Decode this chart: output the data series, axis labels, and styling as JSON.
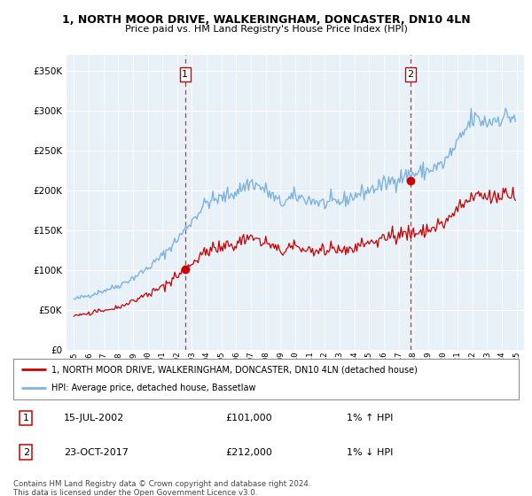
{
  "title": "1, NORTH MOOR DRIVE, WALKERINGHAM, DONCASTER, DN10 4LN",
  "subtitle": "Price paid vs. HM Land Registry's House Price Index (HPI)",
  "legend_line1": "1, NORTH MOOR DRIVE, WALKERINGHAM, DONCASTER, DN10 4LN (detached house)",
  "legend_line2": "HPI: Average price, detached house, Bassetlaw",
  "footer": "Contains HM Land Registry data © Crown copyright and database right 2024.\nThis data is licensed under the Open Government Licence v3.0.",
  "sale1_label": "1",
  "sale1_date": "15-JUL-2002",
  "sale1_price": "£101,000",
  "sale1_hpi": "1% ↑ HPI",
  "sale2_label": "2",
  "sale2_date": "23-OCT-2017",
  "sale2_price": "£212,000",
  "sale2_hpi": "1% ↓ HPI",
  "sale1_x": 2002.54,
  "sale1_y": 101000,
  "sale2_x": 2017.81,
  "sale2_y": 212000,
  "hpi_color": "#7fb3e0",
  "price_color": "#cc0000",
  "dashed_color": "#cc0000",
  "background_color": "#e8f0f8",
  "ylim": [
    0,
    370000
  ],
  "xlim": [
    1994.5,
    2025.5
  ],
  "yticks": [
    0,
    50000,
    100000,
    150000,
    200000,
    250000,
    300000,
    350000
  ],
  "xticks": [
    1995,
    1996,
    1997,
    1998,
    1999,
    2000,
    2001,
    2002,
    2003,
    2004,
    2005,
    2006,
    2007,
    2008,
    2009,
    2010,
    2011,
    2012,
    2013,
    2014,
    2015,
    2016,
    2017,
    2018,
    2019,
    2020,
    2021,
    2022,
    2023,
    2024,
    2025
  ]
}
